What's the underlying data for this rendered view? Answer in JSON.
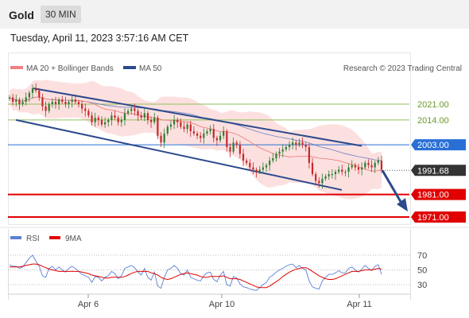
{
  "header": {
    "asset": "Gold",
    "interval": "30 MIN",
    "datetime": "Tuesday, April 11, 2023 3:57:16 AM CET"
  },
  "legend": {
    "ma20_label": "MA 20 + Bollinger Bands",
    "ma50_label": "MA 50",
    "copyright": "Research © 2023 Trading Central",
    "rsi_label": "RSI",
    "rsi_ma_label": "9MA"
  },
  "colors": {
    "bull": "#2e7d32",
    "bear": "#c62828",
    "band_fill": "#f9c6c6",
    "ma20": "#f08080",
    "ma50": "#4a69bd",
    "channel": "#2c4a8c",
    "resistance_green": "#8fbf5a",
    "pivot_blue": "#2a6fd6",
    "support_red": "#e00000",
    "rsi": "#5b7fd6",
    "rsi_ma": "#e00000"
  },
  "chart_data": {
    "type": "candlestick",
    "y_range": [
      1964,
      2034
    ],
    "x_ticks": [
      "Apr 6",
      "Apr 10",
      "Apr 11"
    ],
    "levels": [
      {
        "value": 2021.0,
        "label": "2021.00",
        "kind": "resistance"
      },
      {
        "value": 2014.0,
        "label": "2014.00",
        "kind": "resistance"
      },
      {
        "value": 2003.0,
        "label": "2003.00",
        "kind": "pivot"
      },
      {
        "value": 1991.68,
        "label": "1991.68",
        "kind": "last"
      },
      {
        "value": 1981.0,
        "label": "1981.00",
        "kind": "support"
      },
      {
        "value": 1971.0,
        "label": "1971.00",
        "kind": "support"
      }
    ],
    "closes": [
      2024,
      2022,
      2023,
      2021,
      2022,
      2024,
      2026,
      2028,
      2027,
      2024,
      2020,
      2018,
      2021,
      2022,
      2021,
      2023,
      2022,
      2021,
      2022,
      2023,
      2022,
      2021,
      2019,
      2018,
      2016,
      2013,
      2015,
      2014,
      2012,
      2013,
      2014,
      2016,
      2015,
      2013,
      2014,
      2017,
      2018,
      2019,
      2018,
      2016,
      2015,
      2017,
      2014,
      2013,
      2015,
      2007,
      2004,
      2008,
      2011,
      2012,
      2014,
      2013,
      2011,
      2010,
      2012,
      2009,
      2008,
      2007,
      2006,
      2008,
      2009,
      2010,
      2006,
      2005,
      2007,
      2009,
      2002,
      2000,
      2004,
      2003,
      1999,
      1996,
      1995,
      1993,
      1992,
      1991,
      1992,
      1993,
      1994,
      1996,
      1997,
      1999,
      2000,
      2001,
      2002,
      2003,
      2004,
      2003,
      2004,
      2003,
      2002,
      1995,
      1990,
      1987,
      1986,
      1988,
      1989,
      1990,
      1990,
      1991,
      1992,
      1991,
      1991,
      1993,
      1994,
      1993,
      1992,
      1993,
      1995,
      1994,
      1993,
      1995,
      1996,
      1992
    ],
    "rsi": {
      "y_ticks": [
        70,
        50,
        30
      ],
      "values": [
        57,
        55,
        55,
        52,
        54,
        60,
        66,
        70,
        62,
        55,
        42,
        40,
        52,
        55,
        50,
        54,
        50,
        47,
        52,
        55,
        52,
        48,
        44,
        42,
        40,
        33,
        41,
        40,
        35,
        40,
        42,
        48,
        45,
        38,
        42,
        52,
        54,
        56,
        53,
        47,
        43,
        52,
        40,
        36,
        47,
        28,
        25,
        40,
        50,
        52,
        56,
        52,
        45,
        43,
        50,
        40,
        38,
        36,
        35,
        42,
        46,
        47,
        37,
        34,
        43,
        48,
        30,
        28,
        41,
        39,
        31,
        27,
        26,
        24,
        23,
        22,
        26,
        30,
        33,
        40,
        43,
        47,
        50,
        52,
        55,
        57,
        58,
        53,
        56,
        52,
        50,
        35,
        27,
        25,
        24,
        35,
        40,
        44,
        44,
        46,
        49,
        46,
        46,
        52,
        54,
        50,
        47,
        51,
        56,
        52,
        49,
        55,
        57,
        44
      ],
      "ma": [
        54,
        54,
        54,
        54,
        55,
        56,
        57,
        58,
        58,
        57,
        55,
        53,
        51,
        50,
        49,
        48,
        48,
        48,
        48,
        48,
        48,
        48,
        47,
        46,
        45,
        43,
        42,
        41,
        40,
        39,
        39,
        40,
        40,
        40,
        40,
        41,
        43,
        45,
        47,
        48,
        48,
        48,
        48,
        46,
        45,
        43,
        40,
        38,
        37,
        38,
        40,
        42,
        44,
        45,
        46,
        45,
        44,
        43,
        41,
        40,
        40,
        41,
        41,
        41,
        41,
        42,
        40,
        38,
        38,
        38,
        37,
        35,
        33,
        31,
        29,
        27,
        26,
        26,
        26,
        28,
        31,
        34,
        37,
        41,
        44,
        47,
        49,
        51,
        52,
        53,
        53,
        51,
        48,
        45,
        42,
        40,
        38,
        37,
        37,
        38,
        40,
        42,
        44,
        46,
        48,
        48,
        48,
        49,
        50,
        50,
        50,
        51,
        52,
        51
      ]
    }
  }
}
